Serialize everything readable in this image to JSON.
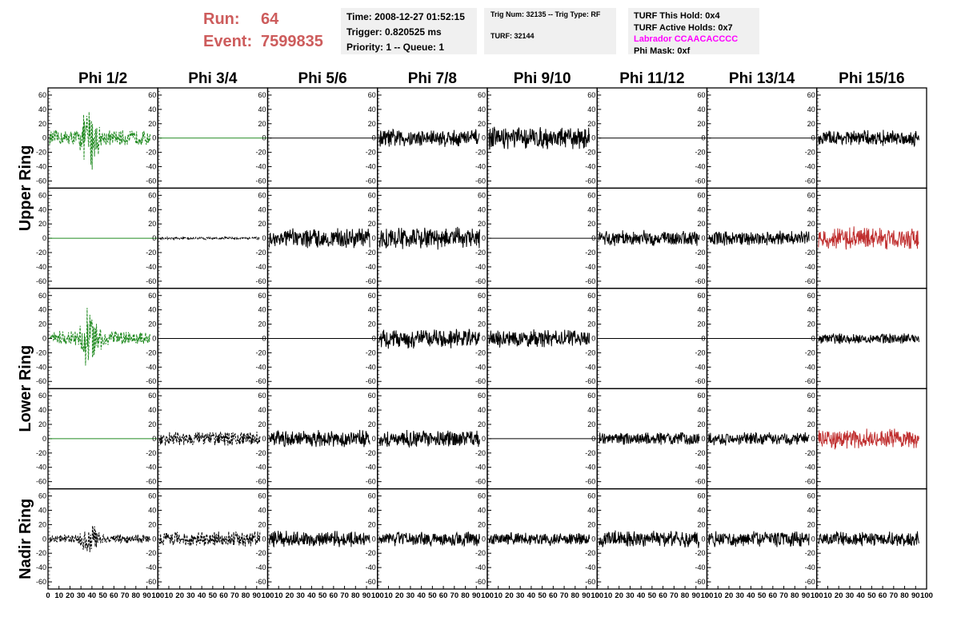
{
  "header": {
    "run_label": "Run:",
    "run_value": "64",
    "event_label": "Event:",
    "event_value": "7599835",
    "time": "Time: 2008-12-27 01:52:15",
    "trigger": "Trigger: 0.820525 ms",
    "priority": "Priority: 1 -- Queue: 1",
    "trig_num": "Trig Num: 32135 -- Trig Type: RF",
    "turf": "TURF: 32144",
    "turf_hold": "TURF This Hold: 0x4",
    "turf_active": "TURF Active Holds: 0x7",
    "labrador": "Labrador CCAACACCCC",
    "phi_mask": "Phi Mask: 0xf"
  },
  "colors": {
    "run_text": "#cd5c5c",
    "labrador_text": "#ff00ff",
    "trace_black": "#000000",
    "trace_green": "#228b22",
    "trace_red": "#c03030"
  },
  "chart_data": {
    "type": "line",
    "columns": [
      "Phi 1/2",
      "Phi 3/4",
      "Phi 5/6",
      "Phi 7/8",
      "Phi 9/10",
      "Phi 11/12",
      "Phi 13/14",
      "Phi 15/16"
    ],
    "rows": [
      "Upper Ring",
      "Upper Ring",
      "Lower Ring",
      "Lower Ring",
      "Nadir Ring"
    ],
    "row_labels": [
      "Upper Ring",
      "Lower Ring",
      "Nadir Ring"
    ],
    "x_ticks": [
      "0",
      "10",
      "20",
      "30",
      "40",
      "50",
      "60",
      "70",
      "80",
      "90",
      "100"
    ],
    "y_ticks": [
      "60",
      "40",
      "20",
      "0",
      "-20",
      "-40",
      "-60"
    ],
    "xlim": [
      0,
      100
    ],
    "ylim": [
      -70,
      70
    ],
    "panels": [
      [
        {
          "color": "green",
          "style": "dashed",
          "amp": 22,
          "burst": 40
        },
        {
          "color": "green",
          "style": "flat",
          "amp": 0
        },
        {
          "color": "black",
          "style": "flat",
          "amp": 0
        },
        {
          "color": "black",
          "style": "solid",
          "amp": 14
        },
        {
          "color": "black",
          "style": "solid",
          "amp": 17
        },
        {
          "color": "black",
          "style": "flat",
          "amp": 0
        },
        {
          "color": "black",
          "style": "flat",
          "amp": 0
        },
        {
          "color": "black",
          "style": "solid",
          "amp": 12
        }
      ],
      [
        {
          "color": "green",
          "style": "flat",
          "amp": 0
        },
        {
          "color": "black",
          "style": "dashed",
          "amp": 2
        },
        {
          "color": "black",
          "style": "solid",
          "amp": 15
        },
        {
          "color": "black",
          "style": "solid",
          "amp": 17
        },
        {
          "color": "black",
          "style": "flat",
          "amp": 0
        },
        {
          "color": "black",
          "style": "solid",
          "amp": 12
        },
        {
          "color": "black",
          "style": "solid",
          "amp": 11
        },
        {
          "color": "red",
          "style": "solid",
          "amp": 17
        }
      ],
      [
        {
          "color": "green",
          "style": "dashed",
          "amp": 20,
          "burst": 40
        },
        {
          "color": "black",
          "style": "flat",
          "amp": 0
        },
        {
          "color": "black",
          "style": "flat",
          "amp": 0
        },
        {
          "color": "black",
          "style": "solid",
          "amp": 15
        },
        {
          "color": "black",
          "style": "solid",
          "amp": 14
        },
        {
          "color": "black",
          "style": "flat",
          "amp": 0
        },
        {
          "color": "black",
          "style": "flat",
          "amp": 0
        },
        {
          "color": "black",
          "style": "solid",
          "amp": 8
        }
      ],
      [
        {
          "color": "green",
          "style": "flat",
          "amp": 0
        },
        {
          "color": "black",
          "style": "dashed",
          "amp": 11
        },
        {
          "color": "black",
          "style": "solid",
          "amp": 13
        },
        {
          "color": "black",
          "style": "solid",
          "amp": 13
        },
        {
          "color": "black",
          "style": "flat",
          "amp": 0
        },
        {
          "color": "black",
          "style": "solid",
          "amp": 10
        },
        {
          "color": "black",
          "style": "solid",
          "amp": 10
        },
        {
          "color": "red",
          "style": "solid",
          "amp": 15
        }
      ],
      [
        {
          "color": "black",
          "style": "dashed",
          "amp": 12,
          "burst": 40
        },
        {
          "color": "black",
          "style": "dashed",
          "amp": 12
        },
        {
          "color": "black",
          "style": "solid",
          "amp": 12
        },
        {
          "color": "black",
          "style": "solid",
          "amp": 11
        },
        {
          "color": "black",
          "style": "solid",
          "amp": 10
        },
        {
          "color": "black",
          "style": "solid",
          "amp": 13
        },
        {
          "color": "black",
          "style": "solid",
          "amp": 12
        },
        {
          "color": "black",
          "style": "solid",
          "amp": 11
        }
      ]
    ]
  }
}
